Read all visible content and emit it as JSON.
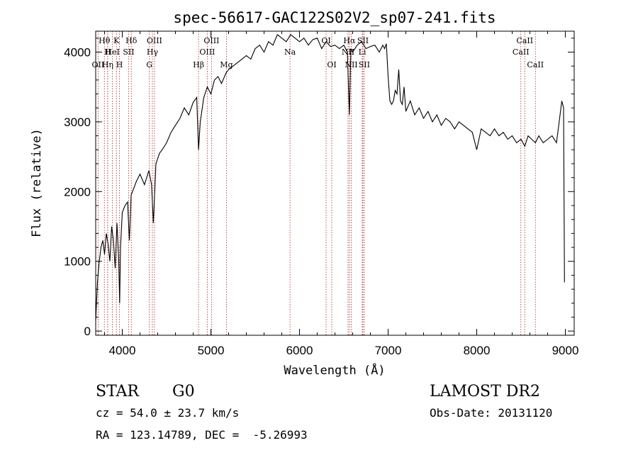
{
  "chart_data": {
    "type": "line",
    "title": "spec-56617-GAC122S02V2_sp07-241.fits",
    "xlabel": "Wavelength (Å)",
    "ylabel": "Flux (relative)",
    "xlim": [
      3700,
      9100
    ],
    "ylim": [
      -60,
      4300
    ],
    "xticks": [
      4000,
      5000,
      6000,
      7000,
      8000,
      9000
    ],
    "yticks": [
      0,
      1000,
      2000,
      3000,
      4000
    ],
    "line_color": "#000000",
    "marker_color": "#b22222",
    "series": [
      {
        "x": [
          3700,
          3720,
          3740,
          3760,
          3780,
          3800,
          3820,
          3840,
          3860,
          3880,
          3900,
          3920,
          3940,
          3960,
          3970,
          3980,
          4000,
          4030,
          4060,
          4080,
          4100,
          4130,
          4160,
          4200,
          4250,
          4300,
          4330,
          4350,
          4380,
          4420,
          4450,
          4500,
          4550,
          4600,
          4650,
          4700,
          4750,
          4800,
          4840,
          4861,
          4880,
          4920,
          4960,
          5000,
          5040,
          5080,
          5120,
          5170,
          5200,
          5250,
          5300,
          5350,
          5400,
          5450,
          5500,
          5550,
          5600,
          5650,
          5700,
          5750,
          5800,
          5850,
          5900,
          5950,
          6000,
          6050,
          6100,
          6150,
          6200,
          6250,
          6300,
          6350,
          6400,
          6450,
          6500,
          6540,
          6563,
          6580,
          6600,
          6650,
          6700,
          6750,
          6800,
          6850,
          6900,
          6940,
          6960,
          6980,
          7000,
          7020,
          7040,
          7060,
          7080,
          7100,
          7120,
          7140,
          7160,
          7180,
          7200,
          7250,
          7300,
          7350,
          7400,
          7450,
          7500,
          7550,
          7600,
          7650,
          7700,
          7750,
          7800,
          7850,
          7900,
          7950,
          8000,
          8050,
          8100,
          8150,
          8200,
          8250,
          8300,
          8350,
          8400,
          8450,
          8500,
          8542,
          8580,
          8620,
          8662,
          8700,
          8750,
          8800,
          8850,
          8900,
          8930,
          8960,
          8980,
          8990
        ],
        "y": [
          150,
          700,
          1000,
          1200,
          1300,
          1100,
          1400,
          1250,
          1000,
          1500,
          1300,
          900,
          1550,
          1000,
          400,
          1200,
          1700,
          1800,
          1850,
          1300,
          1950,
          2050,
          2150,
          2250,
          2100,
          2300,
          2100,
          1550,
          2400,
          2550,
          2600,
          2700,
          2850,
          2950,
          3050,
          3200,
          3100,
          3280,
          3350,
          2600,
          3000,
          3350,
          3500,
          3400,
          3600,
          3650,
          3550,
          3700,
          3750,
          3800,
          3850,
          3900,
          3950,
          3900,
          4050,
          4100,
          4000,
          4150,
          4100,
          4250,
          4200,
          4150,
          4250,
          4200,
          4150,
          4200,
          4100,
          4180,
          4200,
          4050,
          4150,
          4080,
          4100,
          4050,
          4100,
          4000,
          3100,
          4050,
          4000,
          4100,
          4150,
          4050,
          4080,
          4100,
          4000,
          4100,
          4050,
          4120,
          3650,
          3300,
          3250,
          3300,
          3450,
          3400,
          3750,
          3300,
          3250,
          3500,
          3150,
          3300,
          3100,
          3200,
          3050,
          3150,
          3000,
          3100,
          2950,
          3050,
          3000,
          2900,
          3000,
          2950,
          2900,
          2850,
          2600,
          2900,
          2850,
          2800,
          2900,
          2800,
          2850,
          2750,
          2800,
          2700,
          2750,
          2650,
          2800,
          2750,
          2700,
          2800,
          2700,
          2750,
          2800,
          2700,
          3000,
          3300,
          3200,
          700
        ]
      }
    ],
    "lines": [
      {
        "label": "Hθ",
        "wavelength": 3798,
        "row": 1
      },
      {
        "label": "OII",
        "wavelength": 3727,
        "row": 3
      },
      {
        "label": "H",
        "wavelength": 3835,
        "row": 2
      },
      {
        "label": "HeI",
        "wavelength": 3889,
        "row": 2
      },
      {
        "label": "Hη",
        "wavelength": 3835,
        "row": 3
      },
      {
        "label": "K",
        "wavelength": 3934,
        "row": 1
      },
      {
        "label": "H",
        "wavelength": 3968,
        "row": 3
      },
      {
        "label": "SII",
        "wavelength": 4072,
        "row": 2
      },
      {
        "label": "Hδ",
        "wavelength": 4102,
        "row": 1
      },
      {
        "label": "OIII",
        "wavelength": 4363,
        "row": 1
      },
      {
        "label": "Hγ",
        "wavelength": 4340,
        "row": 2
      },
      {
        "label": "G",
        "wavelength": 4305,
        "row": 3
      },
      {
        "label": "Hβ",
        "wavelength": 4861,
        "row": 3
      },
      {
        "label": "OIII",
        "wavelength": 5007,
        "row": 1
      },
      {
        "label": "OIII",
        "wavelength": 4959,
        "row": 2
      },
      {
        "label": "Mg",
        "wavelength": 5175,
        "row": 3
      },
      {
        "label": "Na",
        "wavelength": 5893,
        "row": 2
      },
      {
        "label": "OI",
        "wavelength": 6300,
        "row": 1
      },
      {
        "label": "OI",
        "wavelength": 6364,
        "row": 3
      },
      {
        "label": "Hα",
        "wavelength": 6563,
        "row": 1
      },
      {
        "label": "NII",
        "wavelength": 6548,
        "row": 2
      },
      {
        "label": "NII",
        "wavelength": 6584,
        "row": 3
      },
      {
        "label": "SII",
        "wavelength": 6716,
        "row": 1
      },
      {
        "label": "Li",
        "wavelength": 6708,
        "row": 2
      },
      {
        "label": "SII",
        "wavelength": 6731,
        "row": 3
      },
      {
        "label": "CaII",
        "wavelength": 8542,
        "row": 1
      },
      {
        "label": "CaII",
        "wavelength": 8498,
        "row": 2
      },
      {
        "label": "CaII",
        "wavelength": 8662,
        "row": 3
      }
    ]
  },
  "info": {
    "object_class": "STAR",
    "subclass": "G0",
    "survey": "LAMOST DR2",
    "redshift": "cz = 54.0 ± 23.7 km/s",
    "obs_date": "Obs-Date: 20131120",
    "coords": "RA = 123.14789, DEC =  -5.26993"
  }
}
